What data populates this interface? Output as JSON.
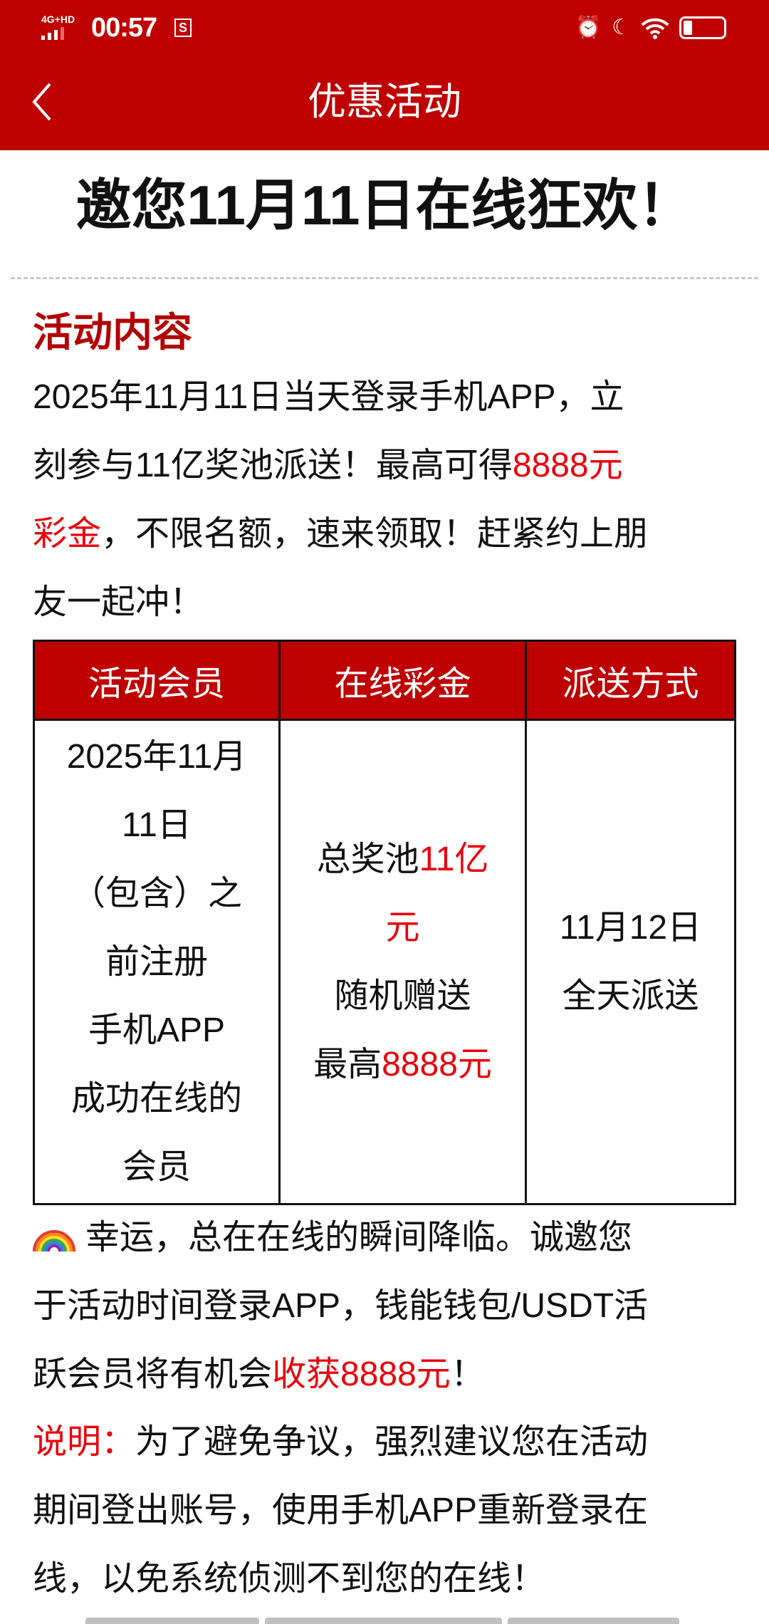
{
  "status_bar": {
    "network": "4G+HD",
    "time": "00:57",
    "icons": [
      "signal-icon",
      "s-app-icon",
      "alarm-icon",
      "moon-icon",
      "wifi-icon",
      "battery-icon"
    ]
  },
  "header": {
    "title": "优惠活动",
    "back_icon": "chevron-left-icon"
  },
  "headline": "邀您11月11日在线狂欢！",
  "section": {
    "title": "活动内容",
    "lines": [
      [
        {
          "t": "2025年11月11日当天登录手机APP，立"
        }
      ],
      [
        {
          "t": "刻参与11亿奖池派送！最高可得"
        },
        {
          "t": "8888元",
          "red": true
        }
      ],
      [
        {
          "t": "彩金",
          "red": true
        },
        {
          "t": "，不限名额，速来领取！赶紧约上朋"
        }
      ],
      [
        {
          "t": "友一起冲！"
        }
      ]
    ]
  },
  "table": {
    "headers": [
      "活动会员",
      "在线彩金",
      "派送方式"
    ],
    "col1": [
      "2025年11月",
      "11日",
      "（包含）之",
      "前注册",
      "手机APP",
      "成功在线的",
      "会员"
    ],
    "col2": [
      [
        {
          "t": "总奖池"
        },
        {
          "t": "11亿",
          "red": true
        }
      ],
      [
        {
          "t": "元",
          "red": true
        }
      ],
      [
        {
          "t": "随机赠送"
        }
      ],
      [
        {
          "t": "最高"
        },
        {
          "t": "8888元",
          "red": true
        }
      ]
    ],
    "col3": [
      "11月12日",
      "全天派送"
    ]
  },
  "note": {
    "emoji": "rainbow-icon",
    "lines": [
      [
        {
          "t": "幸运，总在在线的瞬间降临。诚邀您"
        }
      ],
      [
        {
          "t": "于活动时间登录APP，钱能钱包/USDT活"
        }
      ],
      [
        {
          "t": "跃会员将有机会"
        },
        {
          "t": "收获8888元",
          "red": true
        },
        {
          "t": "！"
        }
      ]
    ]
  },
  "disclaimer": {
    "lines": [
      [
        {
          "t": "说明：",
          "red": true
        },
        {
          "t": "为了避免争议，强烈建议您在活动"
        }
      ],
      [
        {
          "t": "期间登出账号，使用手机APP重新登录在"
        }
      ],
      [
        {
          "t": "线，以免系统侦测不到您的在线！"
        }
      ]
    ]
  },
  "colors": {
    "brand": "#bf0000",
    "highlight": "#e8000b",
    "section_title": "#b30000"
  }
}
